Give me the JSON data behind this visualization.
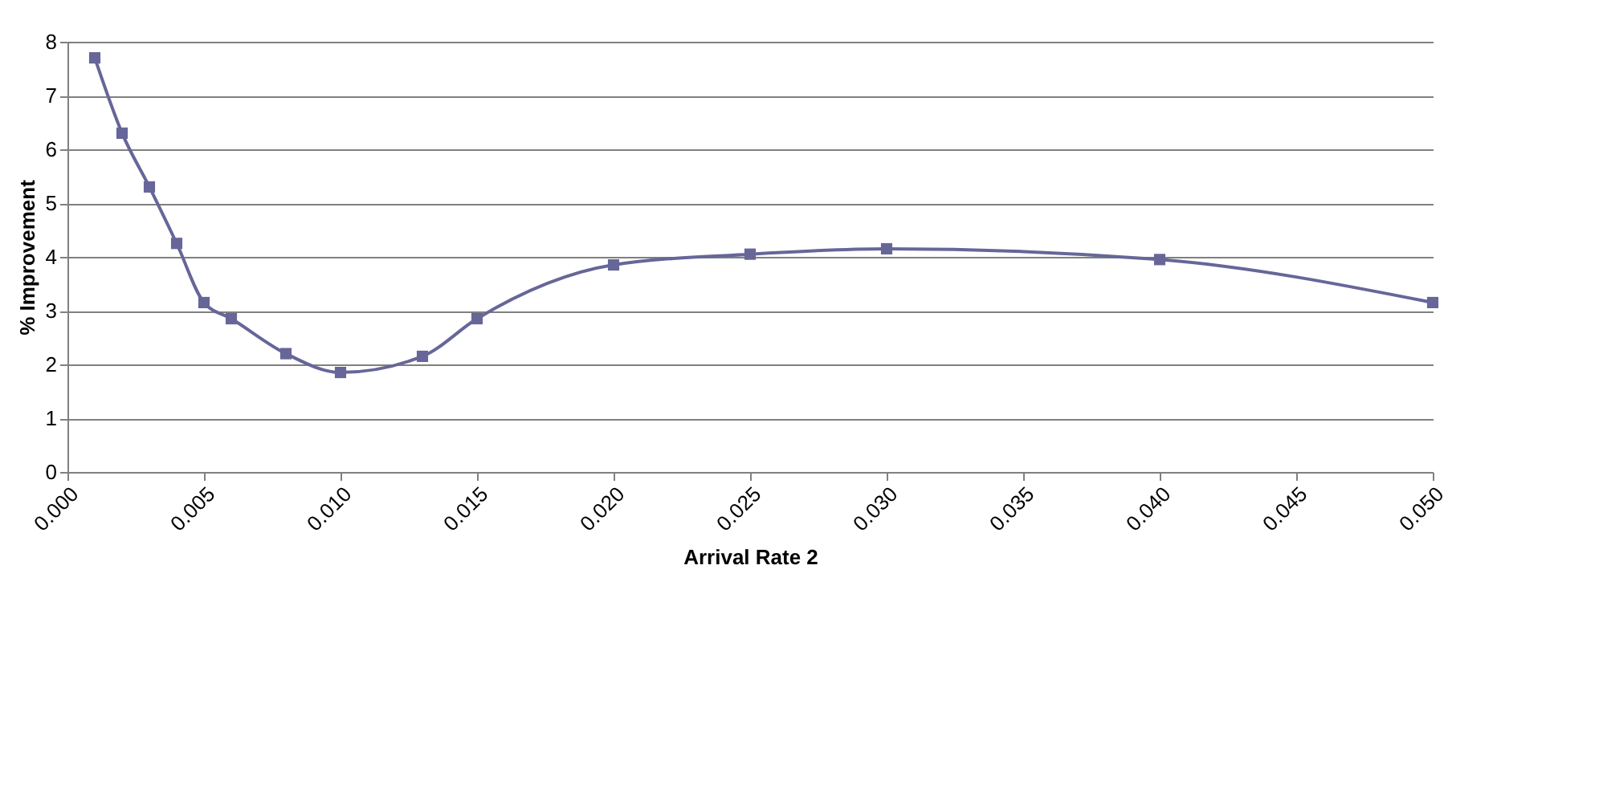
{
  "chart_data": {
    "type": "line",
    "xlabel": "Arrival Rate 2",
    "ylabel": "% Improvement",
    "x": [
      0.001,
      0.002,
      0.003,
      0.004,
      0.005,
      0.006,
      0.008,
      0.01,
      0.013,
      0.015,
      0.02,
      0.025,
      0.03,
      0.04,
      0.05
    ],
    "series": [
      {
        "color": "#666699",
        "values": [
          7.7,
          6.3,
          5.3,
          4.25,
          3.15,
          2.85,
          2.2,
          1.85,
          2.15,
          2.85,
          3.85,
          4.05,
          4.15,
          3.95,
          3.15
        ]
      }
    ],
    "xlim": [
      0,
      0.05
    ],
    "xticks": [
      {
        "value": 0,
        "label": "0.000"
      },
      {
        "value": 0.005,
        "label": "0.005"
      },
      {
        "value": 0.01,
        "label": "0.010"
      },
      {
        "value": 0.015,
        "label": "0.015"
      },
      {
        "value": 0.02,
        "label": "0.020"
      },
      {
        "value": 0.025,
        "label": "0.025"
      },
      {
        "value": 0.03,
        "label": "0.030"
      },
      {
        "value": 0.035,
        "label": "0.035"
      },
      {
        "value": 0.04,
        "label": "0.040"
      },
      {
        "value": 0.045,
        "label": "0.045"
      },
      {
        "value": 0.05,
        "label": "0.050"
      }
    ],
    "ylim": [
      0,
      8
    ],
    "yticks": [
      0,
      1,
      2,
      3,
      4,
      5,
      6,
      7,
      8
    ],
    "grid": "y",
    "marker": "square",
    "line_style": "solid"
  }
}
